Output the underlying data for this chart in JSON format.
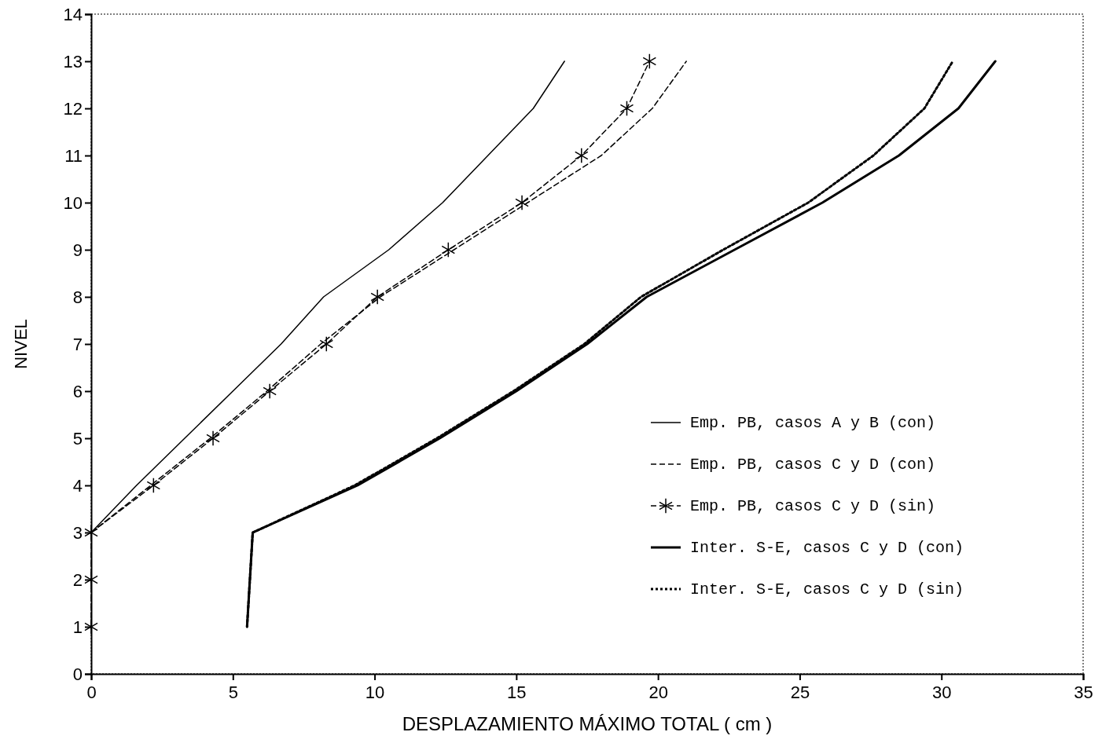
{
  "chart_data": {
    "type": "line",
    "xlabel": "DESPLAZAMIENTO MÁXIMO TOTAL ( cm )",
    "ylabel": "NIVEL",
    "xlim": [
      0,
      35
    ],
    "xticks": [
      0,
      5,
      10,
      15,
      20,
      25,
      30,
      35
    ],
    "ylim": [
      0,
      14
    ],
    "yticks": [
      0,
      1,
      2,
      3,
      4,
      5,
      6,
      7,
      8,
      9,
      10,
      11,
      12,
      13,
      14
    ],
    "grid": false,
    "legend": "bottom right",
    "series": [
      {
        "name": "Emp. PB, casos A y B (con)",
        "color": "#000000",
        "line_style": "solid",
        "marker": "none",
        "x": [
          0,
          1.6,
          3.3,
          5.0,
          6.7,
          8.2,
          10.5,
          12.4,
          14.0,
          15.6,
          16.7
        ],
        "values": [
          3,
          4,
          5,
          6,
          7,
          8,
          9,
          10,
          11,
          12,
          13
        ]
      },
      {
        "name": "Emp. PB, casos C y D (con)",
        "color": "#000000",
        "line_style": "dashed",
        "marker": "none",
        "x": [
          0,
          2.1,
          4.2,
          6.2,
          8.1,
          10.2,
          12.8,
          15.4,
          18.0,
          19.8,
          21.0
        ],
        "values": [
          3,
          4,
          5,
          6,
          7,
          8,
          9,
          10,
          11,
          12,
          13
        ]
      },
      {
        "name": "Emp. PB, casos C y D (sin)",
        "color": "#000000",
        "line_style": "dashed",
        "marker": "cross",
        "x": [
          0,
          0,
          0,
          2.2,
          4.3,
          6.3,
          8.3,
          10.1,
          12.6,
          15.2,
          17.3,
          18.9,
          19.7
        ],
        "values": [
          1,
          2,
          3,
          4,
          5,
          6,
          7,
          8,
          9,
          10,
          11,
          12,
          13
        ]
      },
      {
        "name": "Inter. S-E, casos C y D (con)",
        "color": "#000000",
        "line_style": "solid",
        "marker": "none",
        "x": [
          5.5,
          5.6,
          5.7,
          9.4,
          12.3,
          15.0,
          17.5,
          19.6,
          22.7,
          25.8,
          28.5,
          30.6,
          31.9
        ],
        "values": [
          1,
          2,
          3,
          4,
          5,
          6,
          7,
          8,
          9,
          10,
          11,
          12,
          13
        ]
      },
      {
        "name": "Inter. S-E, casos C y D (sin)",
        "color": "#000000",
        "line_style": "dotted",
        "marker": "none",
        "x": [
          5.5,
          5.6,
          5.7,
          9.3,
          12.2,
          14.9,
          17.4,
          19.4,
          22.3,
          25.3,
          27.6,
          29.4,
          30.4
        ],
        "values": [
          1,
          2,
          3,
          4,
          5,
          6,
          7,
          8,
          9,
          10,
          11,
          12,
          13
        ]
      }
    ]
  }
}
